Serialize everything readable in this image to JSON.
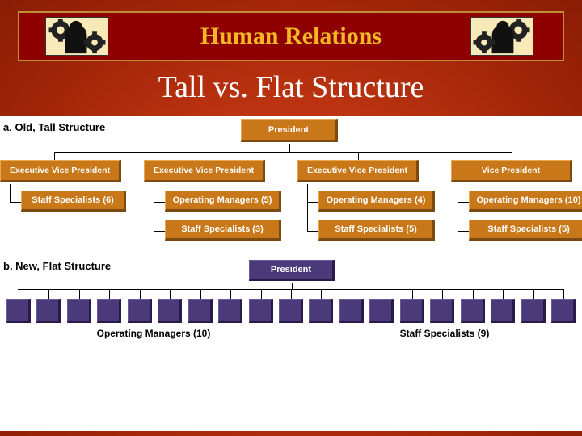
{
  "header": {
    "title": "Human Relations",
    "title_color": "#f3b823",
    "title_fontsize": 30,
    "bar_color": "#8f0000",
    "border_color": "#c09030",
    "ornament_bg": "#f7e9b8"
  },
  "title": {
    "text": "Tall vs. Flat Structure",
    "color": "#ffffff",
    "fontsize": 38
  },
  "background": {
    "gradient_center": "#d6461a",
    "gradient_edge": "#8a1c05"
  },
  "section_a": {
    "label": "a. Old, Tall Structure",
    "type": "tree",
    "box_color": "#c87818",
    "box_shadow": "#7a4a10",
    "text_color": "#ffffff",
    "fontsize": 11,
    "root": "President",
    "branches": [
      {
        "label": "Executive Vice President",
        "children": [
          "Staff Specialists (6)"
        ]
      },
      {
        "label": "Executive Vice President",
        "children": [
          "Operating Managers (5)",
          "Staff Specialists (3)"
        ]
      },
      {
        "label": "Executive Vice President",
        "children": [
          "Operating Managers (4)",
          "Staff Specialists (5)"
        ]
      },
      {
        "label": "Vice President",
        "children": [
          "Operating Managers (10)",
          "Staff Specialists (5)"
        ]
      }
    ]
  },
  "section_b": {
    "label": "b. New, Flat Structure",
    "type": "tree",
    "box_color": "#4a3a7a",
    "box_shadow": "#2a1a4a",
    "text_color": "#ffffff",
    "fontsize": 11,
    "root": "President",
    "groups": [
      {
        "label": "Operating Managers (10)",
        "count": 10
      },
      {
        "label": "Staff Specialists (9)",
        "count": 9
      }
    ],
    "unit_size": 30
  }
}
